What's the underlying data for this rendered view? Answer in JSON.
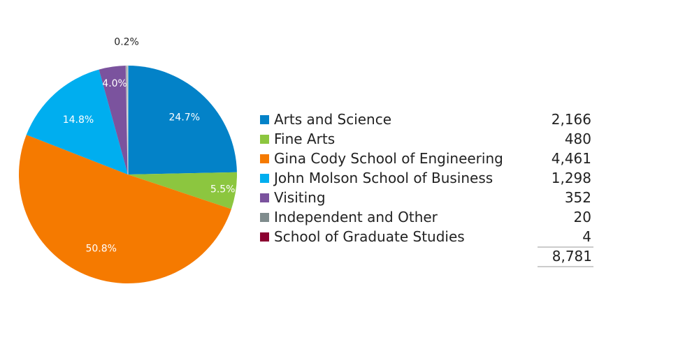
{
  "chart_data": {
    "type": "pie",
    "start": "top",
    "direction": "clockwise",
    "slices": [
      {
        "name": "Arts and Science",
        "value": 2166,
        "value_label": "2,166",
        "percent_label": "24.7%",
        "color": "#0382c8"
      },
      {
        "name": "Fine Arts",
        "value": 480,
        "value_label": "480",
        "percent_label": "5.5%",
        "color": "#8cc63f"
      },
      {
        "name": "Gina Cody School of Engineering",
        "value": 4461,
        "value_label": "4,461",
        "percent_label": "50.8%",
        "color": "#f57a00"
      },
      {
        "name": "John Molson School of Business",
        "value": 1298,
        "value_label": "1,298",
        "percent_label": "14.8%",
        "color": "#00aeef"
      },
      {
        "name": "Visiting",
        "value": 352,
        "value_label": "352",
        "percent_label": "4.0%",
        "color": "#7b539e"
      },
      {
        "name": "Independent and Other",
        "value": 20,
        "value_label": "20",
        "percent_label": "0.2%",
        "color": "#7f8c8d"
      },
      {
        "name": "School of Graduate Studies",
        "value": 4,
        "value_label": "4",
        "percent_label": "",
        "color": "#8b0030"
      }
    ],
    "total_label": "8,781",
    "legend_position": "right"
  }
}
